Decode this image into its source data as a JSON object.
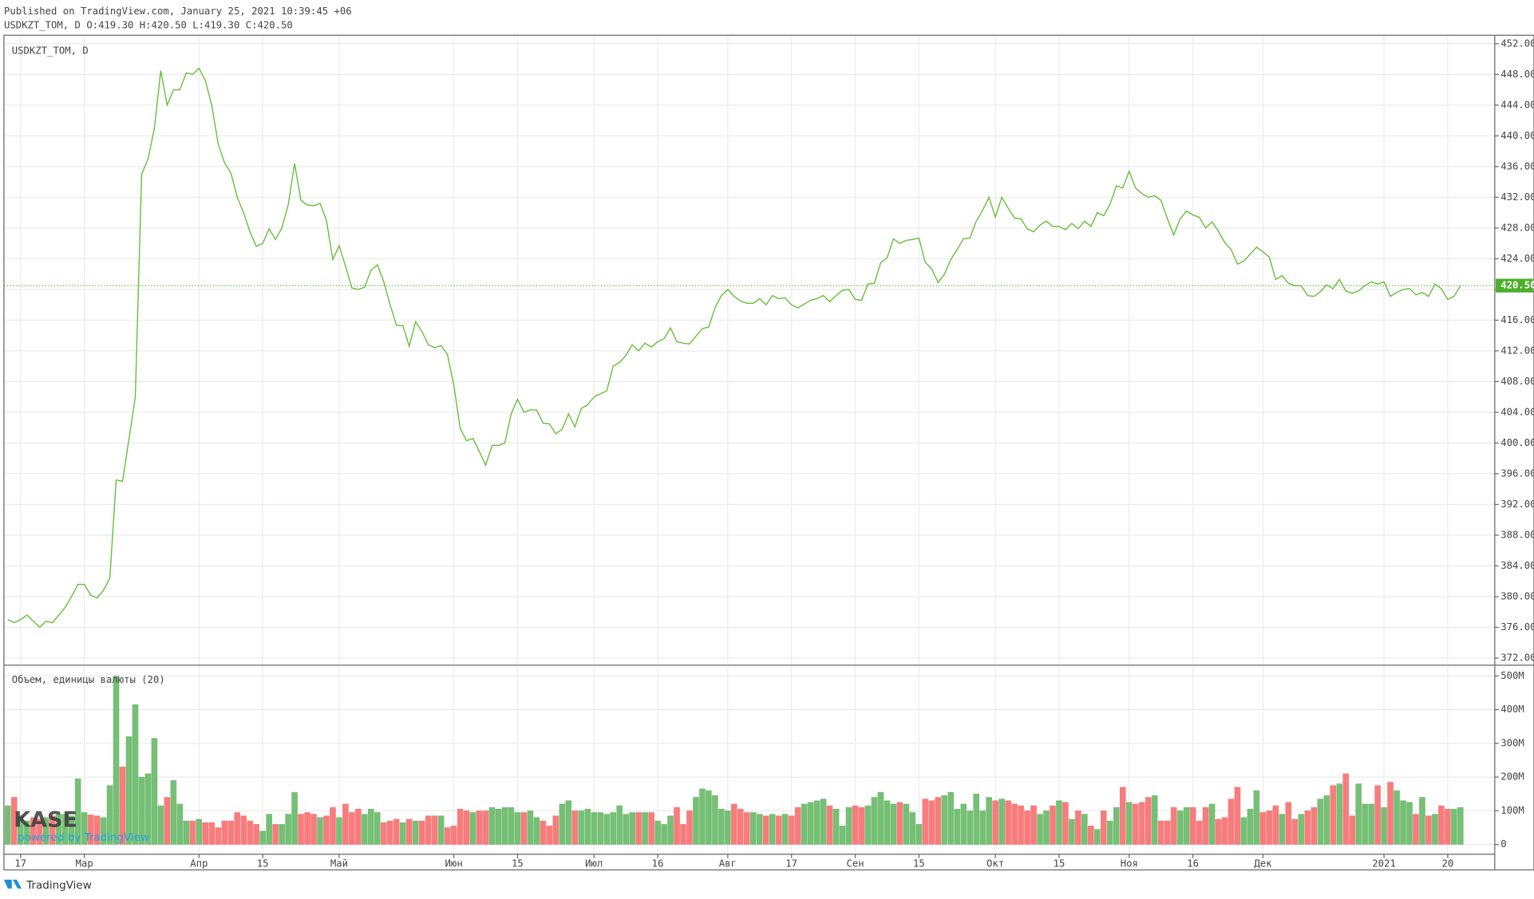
{
  "header": {
    "published": "Published on TradingView.com, January 25, 2021 10:39:45 +06",
    "ohlc": "USDKZT_TOM, D O:419.30 H:420.50 L:419.30 C:420.50"
  },
  "watermark": {
    "logo": "KASE",
    "caption": "powered by TradingView"
  },
  "footer": {
    "brand": "TradingView"
  },
  "chart_data": [
    {
      "type": "line",
      "title": "USDKZT_TOM, D",
      "color": "#62bd34",
      "grid": true,
      "ylim": [
        371.2,
        453.1
      ],
      "yticks": [
        {
          "value": 372,
          "label": "372.00"
        },
        {
          "value": 376,
          "label": "376.00"
        },
        {
          "value": 380,
          "label": "380.00"
        },
        {
          "value": 384,
          "label": "384.00"
        },
        {
          "value": 388,
          "label": "388.00"
        },
        {
          "value": 392,
          "label": "392.00"
        },
        {
          "value": 396,
          "label": "396.00"
        },
        {
          "value": 400,
          "label": "400.00"
        },
        {
          "value": 404,
          "label": "404.00"
        },
        {
          "value": 408,
          "label": "408.00"
        },
        {
          "value": 412,
          "label": "412.00"
        },
        {
          "value": 416,
          "label": "416.00"
        },
        {
          "value": 420,
          "label": "420.00"
        },
        {
          "value": 424,
          "label": "424.00"
        },
        {
          "value": 428,
          "label": "428.00"
        },
        {
          "value": 432,
          "label": "432.00"
        },
        {
          "value": 436,
          "label": "436.00"
        },
        {
          "value": 440,
          "label": "440.00"
        },
        {
          "value": 444,
          "label": "444.00"
        },
        {
          "value": 448,
          "label": "448.00"
        },
        {
          "value": 452,
          "label": "452.00"
        }
      ],
      "last_price": {
        "value": 420.5,
        "label": "420.50",
        "color": "#4caf2a"
      },
      "values": [
        377.0,
        376.6,
        377.0,
        377.6,
        376.8,
        376.0,
        376.8,
        376.6,
        377.6,
        378.6,
        380.0,
        381.6,
        381.6,
        380.2,
        379.8,
        380.8,
        382.4,
        395.2,
        395.0,
        400.5,
        406.0,
        435.0,
        437.0,
        441.0,
        448.5,
        444.0,
        446.0,
        446.0,
        448.2,
        448.0,
        448.8,
        447.2,
        444.0,
        439.0,
        436.5,
        435.2,
        432.0,
        430.0,
        427.5,
        425.6,
        426.0,
        427.9,
        426.5,
        428.0,
        431.0,
        436.4,
        431.6,
        431.0,
        430.9,
        431.2,
        429.0,
        423.9,
        425.7,
        423.0,
        420.2,
        420.0,
        420.3,
        422.5,
        423.2,
        421.0,
        418.0,
        415.3,
        415.3,
        412.6,
        415.8,
        414.5,
        412.8,
        412.4,
        412.7,
        411.5,
        407.5,
        401.9,
        400.3,
        400.6,
        398.9,
        397.1,
        399.7,
        399.7,
        400.0,
        403.8,
        405.7,
        404.0,
        404.3,
        404.3,
        402.6,
        402.5,
        401.2,
        401.8,
        403.8,
        402.1,
        404.5,
        405.0,
        406.0,
        406.4,
        406.8,
        410.0,
        410.5,
        411.4,
        412.8,
        412.0,
        413.0,
        412.5,
        413.2,
        413.6,
        415.0,
        413.2,
        413.0,
        412.9,
        413.9,
        414.9,
        415.1,
        417.6,
        419.2,
        420.0,
        419.1,
        418.5,
        418.2,
        418.2,
        418.8,
        418.0,
        419.2,
        418.8,
        418.9,
        418.0,
        417.6,
        418.1,
        418.6,
        418.8,
        419.2,
        418.4,
        419.2,
        419.9,
        420.0,
        418.7,
        418.6,
        420.7,
        420.8,
        423.5,
        424.1,
        426.6,
        426.0,
        426.4,
        426.5,
        426.7,
        423.5,
        422.7,
        420.9,
        422.0,
        423.9,
        425.2,
        426.6,
        426.7,
        428.9,
        430.3,
        432.0,
        429.4,
        432.0,
        430.6,
        429.3,
        429.2,
        427.9,
        427.5,
        428.4,
        428.9,
        428.2,
        428.2,
        427.8,
        428.6,
        427.9,
        428.9,
        428.2,
        430.0,
        429.6,
        431.1,
        433.5,
        433.2,
        435.4,
        433.2,
        432.5,
        432.0,
        432.2,
        431.6,
        429.2,
        427.1,
        429.2,
        430.2,
        429.7,
        429.4,
        428.0,
        428.8,
        427.6,
        426.1,
        425.2,
        423.3,
        423.7,
        424.6,
        425.5,
        424.9,
        424.2,
        421.3,
        421.8,
        420.8,
        420.5,
        420.5,
        419.2,
        419.1,
        419.7,
        420.6,
        420.1,
        421.3,
        419.8,
        419.5,
        419.8,
        420.5,
        421.0,
        420.7,
        421.0,
        419.1,
        419.6,
        420.0,
        420.1,
        419.3,
        419.6,
        419.1,
        420.7,
        420.1,
        418.7,
        419.1,
        420.5
      ]
    },
    {
      "type": "bar",
      "title": "Объем, единицы валюты (20)",
      "up_color": "#76bf76",
      "down_color": "#f77c7c",
      "grid": true,
      "ylim": [
        -29,
        529
      ],
      "yticks": [
        0,
        {
          "value": 100,
          "label": "100M"
        },
        {
          "value": 200,
          "label": "200M"
        },
        {
          "value": 300,
          "label": "300M"
        },
        {
          "value": 400,
          "label": "400M"
        },
        {
          "value": 500,
          "label": "500M"
        }
      ],
      "categories": [
        null,
        null,
        "17",
        null,
        null,
        null,
        null,
        null,
        null,
        null,
        null,
        null,
        "Мар",
        null,
        null,
        null,
        null,
        null,
        null,
        null,
        null,
        null,
        null,
        null,
        null,
        null,
        null,
        null,
        null,
        null,
        "Апр",
        null,
        null,
        null,
        null,
        null,
        null,
        null,
        null,
        null,
        "15",
        null,
        null,
        null,
        null,
        null,
        null,
        null,
        null,
        null,
        null,
        null,
        "Май",
        null,
        null,
        null,
        null,
        null,
        null,
        null,
        null,
        null,
        null,
        null,
        null,
        null,
        null,
        null,
        null,
        null,
        "Июн",
        null,
        null,
        null,
        null,
        null,
        null,
        null,
        null,
        null,
        "15",
        null,
        null,
        null,
        null,
        null,
        null,
        null,
        null,
        null,
        null,
        null,
        "Июл",
        null,
        null,
        null,
        null,
        null,
        null,
        null,
        null,
        null,
        "16",
        null,
        null,
        null,
        null,
        null,
        null,
        null,
        null,
        null,
        null,
        "Авг",
        null,
        null,
        null,
        null,
        null,
        null,
        null,
        null,
        null,
        "17",
        null,
        null,
        null,
        null,
        null,
        null,
        null,
        null,
        null,
        "Сен",
        null,
        null,
        null,
        null,
        null,
        null,
        null,
        null,
        null,
        "15",
        null,
        null,
        null,
        null,
        null,
        null,
        null,
        null,
        null,
        null,
        null,
        "Окт",
        null,
        null,
        null,
        null,
        null,
        null,
        null,
        null,
        null,
        "15",
        null,
        null,
        null,
        null,
        null,
        null,
        null,
        null,
        null,
        null,
        "Ноя",
        null,
        null,
        null,
        null,
        null,
        null,
        null,
        null,
        null,
        "16",
        null,
        null,
        null,
        null,
        null,
        null,
        null,
        null,
        null,
        null,
        "Дек",
        null,
        null,
        null,
        null,
        null,
        null,
        null,
        null,
        null,
        null,
        null,
        null,
        null,
        null,
        null,
        null,
        null,
        null,
        "2021",
        null,
        null,
        null,
        null,
        null,
        null,
        null,
        null,
        null,
        "20",
        null,
        null
      ],
      "values": [
        115,
        140,
        85,
        70,
        80,
        75,
        80,
        85,
        90,
        90,
        85,
        195,
        95,
        88,
        85,
        80,
        175,
        500,
        230,
        320,
        415,
        200,
        210,
        315,
        115,
        140,
        190,
        120,
        70,
        70,
        75,
        65,
        65,
        50,
        70,
        70,
        95,
        85,
        70,
        60,
        40,
        90,
        60,
        60,
        90,
        155,
        90,
        95,
        90,
        80,
        85,
        110,
        80,
        120,
        95,
        105,
        90,
        105,
        95,
        65,
        70,
        75,
        65,
        75,
        70,
        70,
        85,
        85,
        85,
        50,
        55,
        105,
        100,
        95,
        100,
        100,
        110,
        105,
        110,
        110,
        95,
        95,
        100,
        80,
        70,
        55,
        85,
        120,
        130,
        100,
        100,
        105,
        95,
        95,
        90,
        95,
        115,
        90,
        95,
        95,
        95,
        95,
        70,
        60,
        85,
        110,
        60,
        100,
        140,
        165,
        160,
        145,
        105,
        100,
        120,
        105,
        95,
        95,
        90,
        85,
        90,
        85,
        90,
        85,
        110,
        120,
        125,
        130,
        135,
        115,
        105,
        55,
        110,
        115,
        110,
        115,
        140,
        155,
        130,
        120,
        125,
        120,
        95,
        60,
        135,
        130,
        140,
        145,
        155,
        105,
        120,
        100,
        150,
        100,
        140,
        130,
        135,
        130,
        120,
        115,
        100,
        115,
        90,
        100,
        115,
        130,
        125,
        75,
        100,
        90,
        55,
        45,
        100,
        70,
        110,
        170,
        125,
        120,
        125,
        140,
        145,
        70,
        70,
        110,
        100,
        110,
        110,
        70,
        110,
        120,
        75,
        80,
        135,
        170,
        80,
        105,
        160,
        95,
        100,
        115,
        90,
        125,
        75,
        90,
        100,
        110,
        135,
        145,
        175,
        180,
        210,
        85,
        180,
        120,
        120,
        175,
        110,
        185,
        160,
        130,
        125,
        90,
        140,
        85,
        90,
        115,
        105,
        105,
        110
      ]
    }
  ]
}
